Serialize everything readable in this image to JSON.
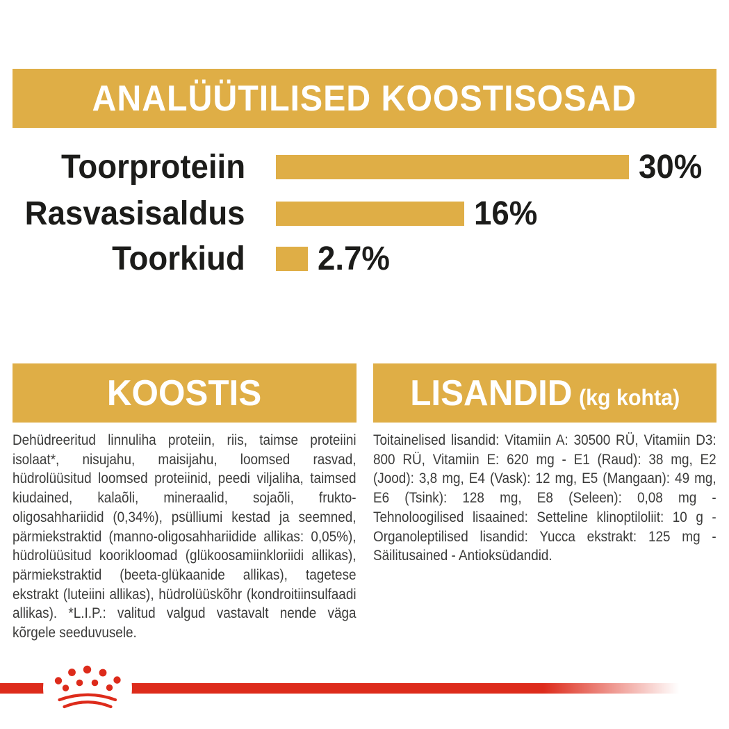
{
  "colors": {
    "gold": "#DFAE46",
    "brand_red": "#DD2B1B",
    "heading_text": "#FFFFFF",
    "chart_text": "#1C1C1A",
    "body_text": "#3B3B3A",
    "background": "#FFFFFF"
  },
  "header": {
    "title": "ANALÜÜTILISED KOOSTISOSAD"
  },
  "chart_data": {
    "type": "bar",
    "orientation": "horizontal",
    "title": "ANALÜÜTILISED KOOSTISOSAD",
    "categories": [
      "Toorproteiin",
      "Rasvasisaldus",
      "Toorkiud"
    ],
    "values": [
      30,
      16,
      2.7
    ],
    "value_labels": [
      "30%",
      "16%",
      "2.7%"
    ],
    "xlabel": "",
    "ylabel": "",
    "xlim": [
      0,
      30
    ],
    "grid": false,
    "legend": false,
    "bar_color": "#DFAE46",
    "label_color": "#1C1C1A"
  },
  "sections": {
    "koostis": {
      "title": "KOOSTIS",
      "body": "Dehüdreeritud linnuliha proteiin, riis, taimse proteiini isolaat*, nisujahu, maisijahu, loomsed rasvad, hüdrolüüsitud loomsed proteiinid, peedi viljaliha, taimsed kiudained, kalaõli, mineraalid, sojaõli, frukto-oligosahhariidid (0,34%), psülliumi kestad ja seemned, pärmiekstraktid (manno-oligosahhariidide allikas: 0,05%), hüdrolüüsitud koorikloomad (glükoosamiinkloriidi allikas), pärmiekstraktid (beeta-glükaanide allikas), tagetese ekstrakt (luteiini allikas), hüdrolüüskõhr (kondroitiinsulfaadi allikas). *L.I.P.: valitud valgud vastavalt nende väga kõrgele seeduvusele."
    },
    "lisandid": {
      "title": "LISANDID",
      "title_suffix": "(kg kohta)",
      "body": "Toitainelised lisandid: Vitamiin A: 30500 RÜ, Vitamiin D3: 800 RÜ, Vitamiin E: 620 mg - E1 (Raud): 38 mg, E2 (Jood): 3,8 mg, E4 (Vask): 12 mg, E5 (Mangaan): 49 mg, E6 (Tsink): 128 mg, E8 (Seleen): 0,08 mg - Tehnoloogilised lisaained: Setteline klinoptiloliit: 10 g - Organoleptilised lisandid: Yucca ekstrakt: 125 mg - Säilitusained - Antioksüdandid."
    }
  },
  "footer": {
    "logo": "royal-canin-crown-icon"
  }
}
